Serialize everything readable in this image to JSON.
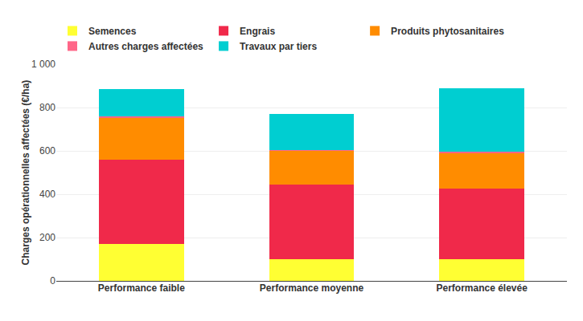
{
  "chart_data": {
    "type": "bar",
    "stacked": true,
    "categories": [
      "Performance faible",
      "Performance moyenne",
      "Performance élevée"
    ],
    "series": [
      {
        "name": "Semences",
        "color": "#FFFF33",
        "values": [
          170,
          100,
          100
        ]
      },
      {
        "name": "Engrais",
        "color": "#F0294A",
        "values": [
          390,
          345,
          325
        ]
      },
      {
        "name": "Produits phytosanitaires",
        "color": "#FF8C00",
        "values": [
          195,
          155,
          165
        ]
      },
      {
        "name": "Autres charges affectées",
        "color": "#FF6688",
        "values": [
          5,
          5,
          5
        ]
      },
      {
        "name": "Travaux par tiers",
        "color": "#00CED1",
        "values": [
          125,
          165,
          295
        ]
      }
    ],
    "ylabel": "Charges opérationnelles affectées (€/ha)",
    "ylim": [
      0,
      1000
    ],
    "yticks": [
      0,
      200,
      400,
      600,
      800,
      {
        "value": 1000,
        "label": "1 000"
      }
    ],
    "grid": true,
    "legend": "upper left"
  }
}
